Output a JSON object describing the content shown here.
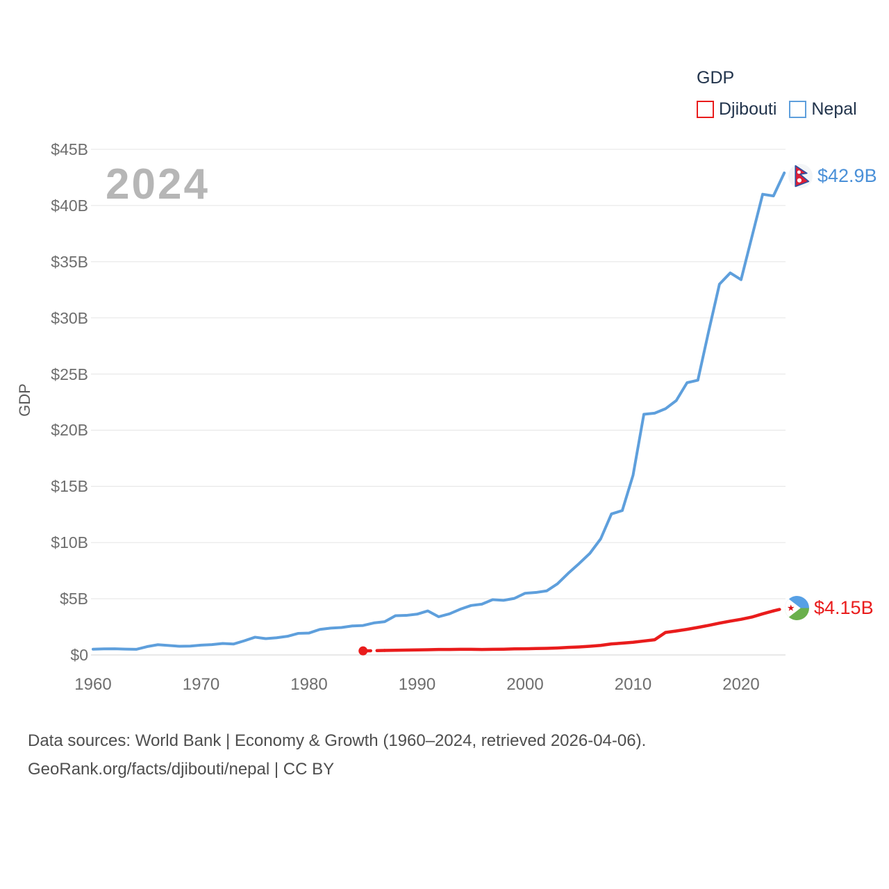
{
  "legend": {
    "title": "GDP",
    "items": [
      {
        "label": "Djibouti",
        "color": "#e91c1c"
      },
      {
        "label": "Nepal",
        "color": "#5e9fdc"
      }
    ]
  },
  "watermark": "2024",
  "y_axis_title": "GDP",
  "end_labels": {
    "nepal": "$42.9B",
    "djibouti": "$4.15B"
  },
  "footer": {
    "line1": "Data sources: World Bank | Economy & Growth (1960–2024, retrieved 2026-04-06).",
    "line2": "GeoRank.org/facts/djibouti/nepal | CC BY"
  },
  "chart_data": {
    "type": "line",
    "title": "GDP",
    "xlabel": "",
    "ylabel": "GDP",
    "grid": "horizontal",
    "legend_position": "top-right",
    "x_start": 1960,
    "x_end": 2024,
    "xlim": [
      1960,
      2024
    ],
    "ylim": [
      0,
      45
    ],
    "x_ticks": [
      1960,
      1970,
      1980,
      1990,
      2000,
      2010,
      2020
    ],
    "y_tick_values": [
      0,
      5,
      10,
      15,
      20,
      25,
      30,
      35,
      40,
      45
    ],
    "y_tick_labels": [
      "$0",
      "$5B",
      "$10B",
      "$15B",
      "$20B",
      "$25B",
      "$30B",
      "$35B",
      "$40B",
      "$45B"
    ],
    "units": "billions of USD",
    "series": [
      {
        "name": "Djibouti",
        "color": "#e91c1c",
        "end_label": "$4.15B",
        "dash_last_segment": true,
        "values": [
          null,
          null,
          null,
          null,
          null,
          null,
          null,
          null,
          null,
          null,
          null,
          null,
          null,
          null,
          null,
          null,
          null,
          null,
          null,
          null,
          null,
          null,
          null,
          null,
          null,
          0.36,
          null,
          0.4,
          0.42,
          0.43,
          0.45,
          0.46,
          0.49,
          0.49,
          0.5,
          0.5,
          0.49,
          0.5,
          0.51,
          0.54,
          0.55,
          0.57,
          0.59,
          0.62,
          0.67,
          0.71,
          0.77,
          0.85,
          0.98,
          1.05,
          1.13,
          1.24,
          1.35,
          2.0,
          2.13,
          2.28,
          2.45,
          2.63,
          2.83,
          3.01,
          3.17,
          3.37,
          3.66,
          3.92,
          4.15
        ]
      },
      {
        "name": "Nepal",
        "color": "#5e9fdc",
        "end_label": "$42.9B",
        "dash_last_segment": false,
        "values": [
          0.51,
          0.54,
          0.55,
          0.52,
          0.5,
          0.74,
          0.91,
          0.84,
          0.77,
          0.79,
          0.87,
          0.92,
          1.02,
          0.97,
          1.26,
          1.58,
          1.45,
          1.53,
          1.66,
          1.92,
          1.95,
          2.27,
          2.39,
          2.44,
          2.58,
          2.62,
          2.85,
          2.96,
          3.49,
          3.52,
          3.63,
          3.92,
          3.4,
          3.66,
          4.07,
          4.4,
          4.52,
          4.92,
          4.86,
          5.03,
          5.49,
          5.56,
          5.7,
          6.33,
          7.27,
          8.13,
          9.04,
          10.33,
          12.55,
          12.85,
          16.0,
          21.42,
          21.52,
          21.91,
          22.64,
          24.23,
          24.45,
          28.8,
          33.0,
          34.0,
          33.4,
          37.2,
          41.0,
          40.85,
          42.9
        ]
      }
    ]
  }
}
